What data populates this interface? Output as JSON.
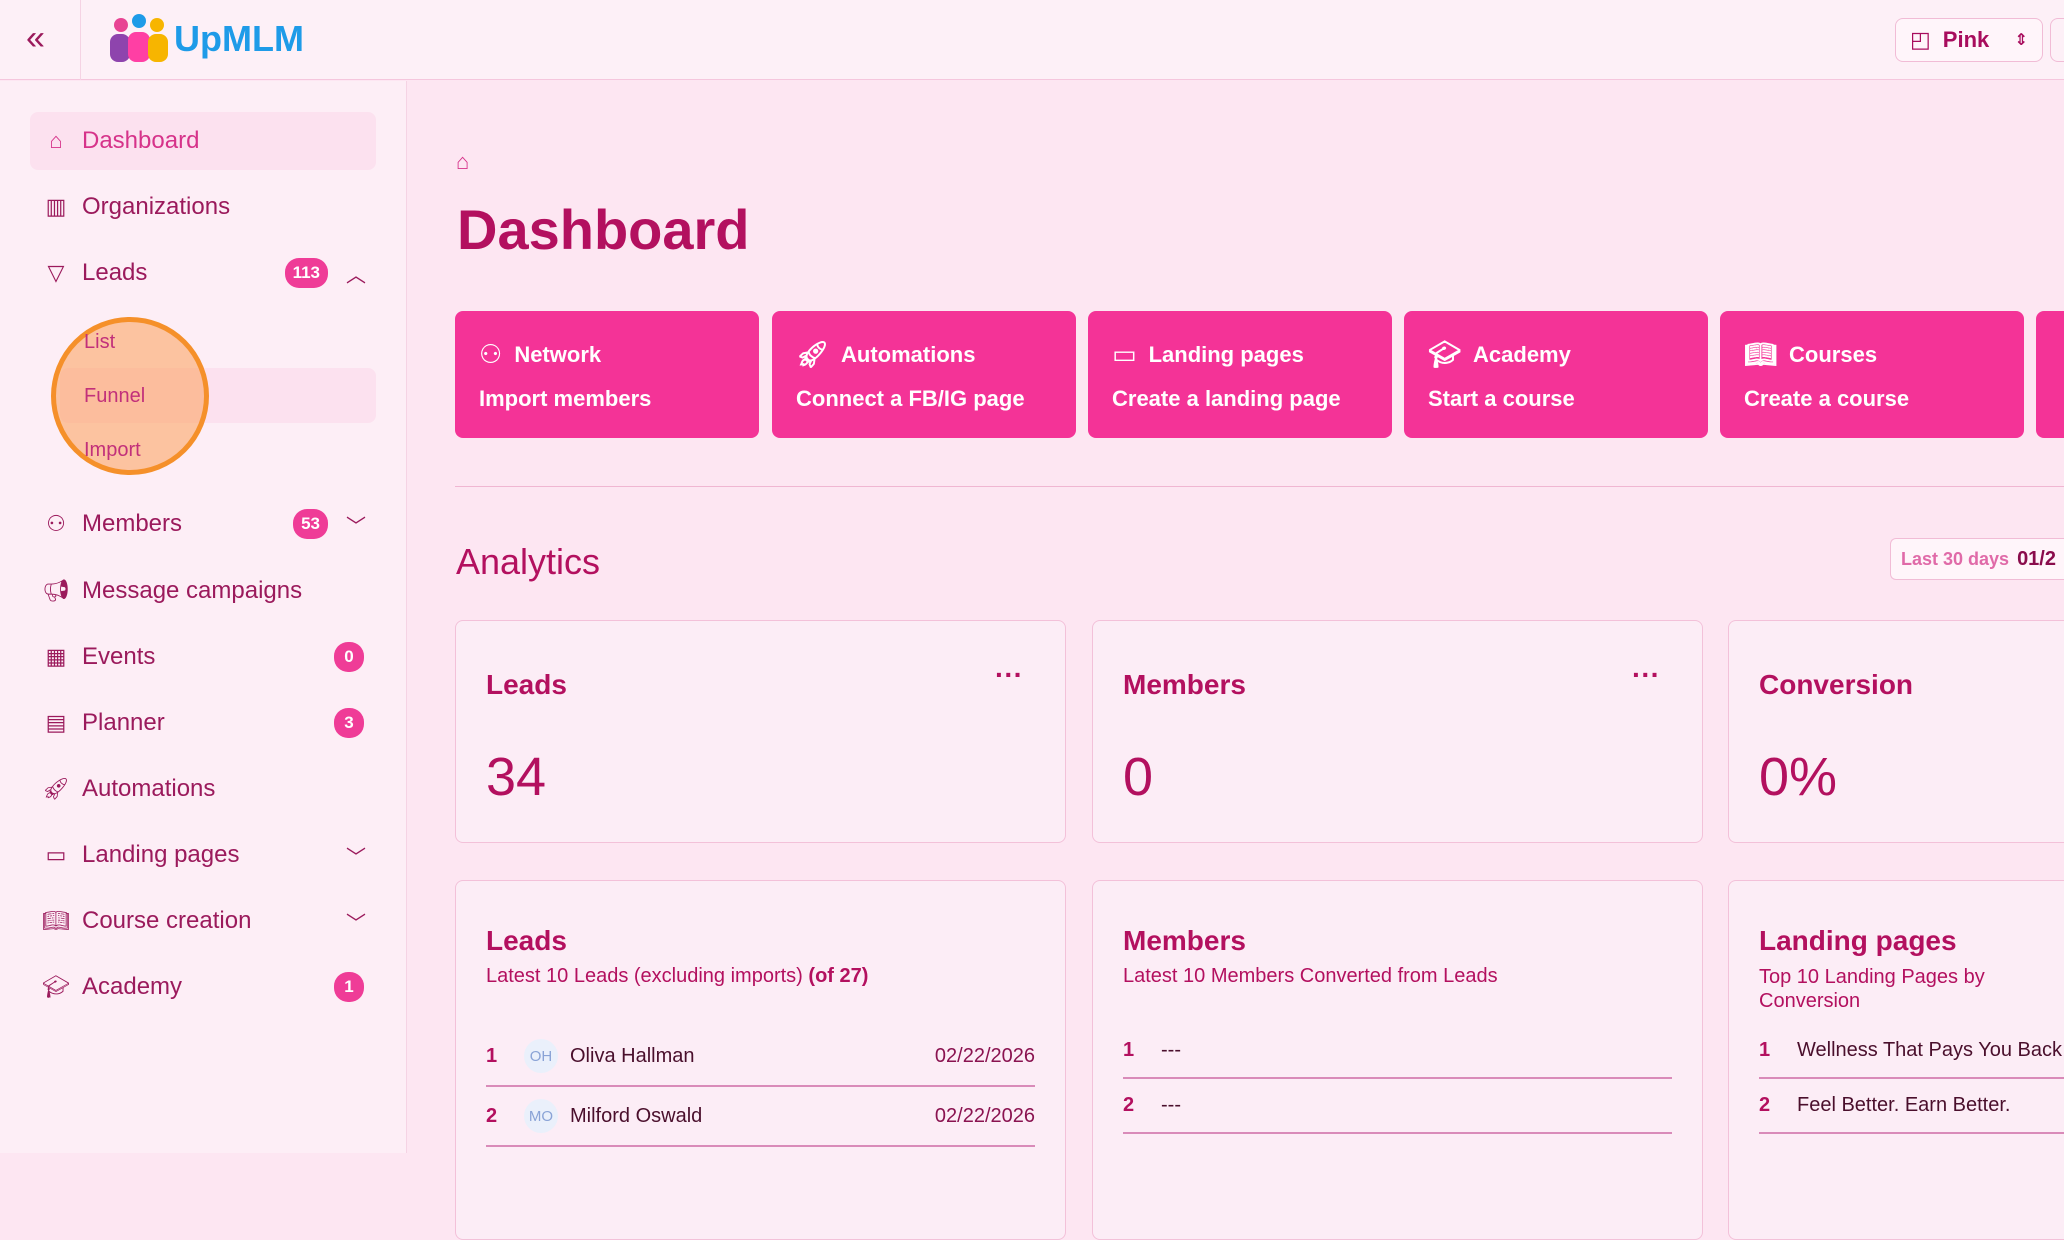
{
  "header": {
    "logo_text": "UpMLM",
    "theme_value": "Pink"
  },
  "sidebar": {
    "items": [
      {
        "label": "Dashboard",
        "icon": "home-icon"
      },
      {
        "label": "Organizations",
        "icon": "building-icon"
      },
      {
        "label": "Leads",
        "icon": "funnel-icon",
        "badge": "113"
      },
      {
        "label": "Members",
        "icon": "users-icon",
        "badge": "53"
      },
      {
        "label": "Message campaigns",
        "icon": "megaphone-icon"
      },
      {
        "label": "Events",
        "icon": "calendar-icon",
        "badge": "0"
      },
      {
        "label": "Planner",
        "icon": "clipboard-icon",
        "badge": "3"
      },
      {
        "label": "Automations",
        "icon": "rocket-icon"
      },
      {
        "label": "Landing pages",
        "icon": "monitor-icon"
      },
      {
        "label": "Course creation",
        "icon": "book-icon"
      },
      {
        "label": "Academy",
        "icon": "graduation-cap-icon",
        "badge": "1"
      }
    ],
    "leads_sub": [
      "List",
      "Funnel",
      "Import"
    ]
  },
  "main": {
    "title": "Dashboard",
    "quick": [
      {
        "title": "Network",
        "action": "Import members"
      },
      {
        "title": "Automations",
        "action": "Connect a FB/IG page"
      },
      {
        "title": "Landing pages",
        "action": "Create a landing page"
      },
      {
        "title": "Academy",
        "action": "Start a course"
      },
      {
        "title": "Courses",
        "action": "Create a course"
      }
    ],
    "analytics": {
      "title": "Analytics",
      "range_label": "Last 30 days",
      "range_value": "01/2",
      "stats": [
        {
          "title": "Leads",
          "value": "34"
        },
        {
          "title": "Members",
          "value": "0"
        },
        {
          "title": "Conversion",
          "value": "0%"
        }
      ],
      "leads_list": {
        "title": "Leads",
        "subtitle": "Latest 10 Leads (excluding imports)",
        "count": "(of 27)",
        "rows": [
          {
            "n": "1",
            "initials": "OH",
            "name": "Oliva Hallman",
            "date": "02/22/2026"
          },
          {
            "n": "2",
            "initials": "MO",
            "name": "Milford Oswald",
            "date": "02/22/2026"
          }
        ]
      },
      "members_list": {
        "title": "Members",
        "subtitle": "Latest 10 Members Converted from Leads",
        "rows": [
          {
            "n": "1",
            "name": "---"
          },
          {
            "n": "2",
            "name": "---"
          }
        ]
      },
      "pages_list": {
        "title": "Landing pages",
        "subtitle": "Top 10 Landing Pages by Conversion",
        "rows": [
          {
            "n": "1",
            "name": "Wellness That Pays You Back"
          },
          {
            "n": "2",
            "name": "Feel Better. Earn Better."
          }
        ]
      }
    }
  },
  "colors": {
    "accent": "#f43397",
    "text": "#b3105f",
    "background": "#fde6f2"
  }
}
